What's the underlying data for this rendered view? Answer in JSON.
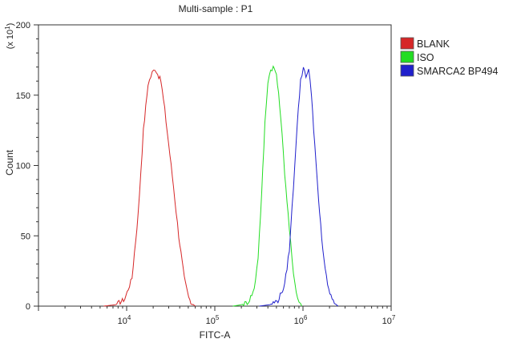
{
  "chart_data": {
    "type": "line",
    "title": "Multi-sample : P1",
    "xlabel": "FITC-A",
    "ylabel": "Count",
    "y_multiplier_label": "(x 10",
    "y_multiplier_exp": "1",
    "y_multiplier_close": ")",
    "x_scale": "log",
    "xlim": [
      1000,
      10000000
    ],
    "ylim": [
      0,
      200
    ],
    "x_ticks": [
      {
        "value": 10000,
        "base": "10",
        "exp": "4"
      },
      {
        "value": 100000,
        "base": "10",
        "exp": "5"
      },
      {
        "value": 1000000,
        "base": "10",
        "exp": "6"
      },
      {
        "value": 10000000,
        "base": "10",
        "exp": "7"
      }
    ],
    "y_ticks": [
      {
        "value": 0,
        "label": "0"
      },
      {
        "value": 50,
        "label": "50"
      },
      {
        "value": 100,
        "label": "100"
      },
      {
        "value": 150,
        "label": "150"
      },
      {
        "value": 200,
        "label": "200"
      }
    ],
    "grid": false,
    "legend_position": "right-top",
    "series": [
      {
        "name": "BLANK",
        "color": "#d62728",
        "x": [
          5500,
          7500,
          9500,
          11500,
          13500,
          15500,
          17500,
          19500,
          21000,
          22500,
          24500,
          27000,
          30000,
          34000,
          39000,
          45000,
          52000,
          60000
        ],
        "y": [
          0,
          1,
          5,
          20,
          65,
          125,
          158,
          166,
          169,
          165,
          160,
          140,
          115,
          85,
          50,
          20,
          3,
          0
        ]
      },
      {
        "name": "ISO",
        "color": "#22dd22",
        "x": [
          160000,
          200000,
          240000,
          280000,
          310000,
          340000,
          370000,
          400000,
          430000,
          460000,
          500000,
          560000,
          620000,
          700000,
          780000,
          870000,
          970000
        ],
        "y": [
          0,
          1,
          3,
          12,
          35,
          80,
          130,
          160,
          168,
          170,
          165,
          135,
          95,
          55,
          22,
          6,
          0
        ]
      },
      {
        "name": "SMARCA2 BP494",
        "color": "#2020cc",
        "x": [
          320000,
          420000,
          520000,
          620000,
          700000,
          780000,
          860000,
          940000,
          1010000,
          1080000,
          1160000,
          1250000,
          1360000,
          1500000,
          1680000,
          1900000,
          2200000,
          2500000
        ],
        "y": [
          0,
          1,
          4,
          15,
          40,
          85,
          130,
          160,
          170,
          164,
          168,
          150,
          115,
          75,
          40,
          14,
          3,
          0
        ]
      }
    ]
  }
}
